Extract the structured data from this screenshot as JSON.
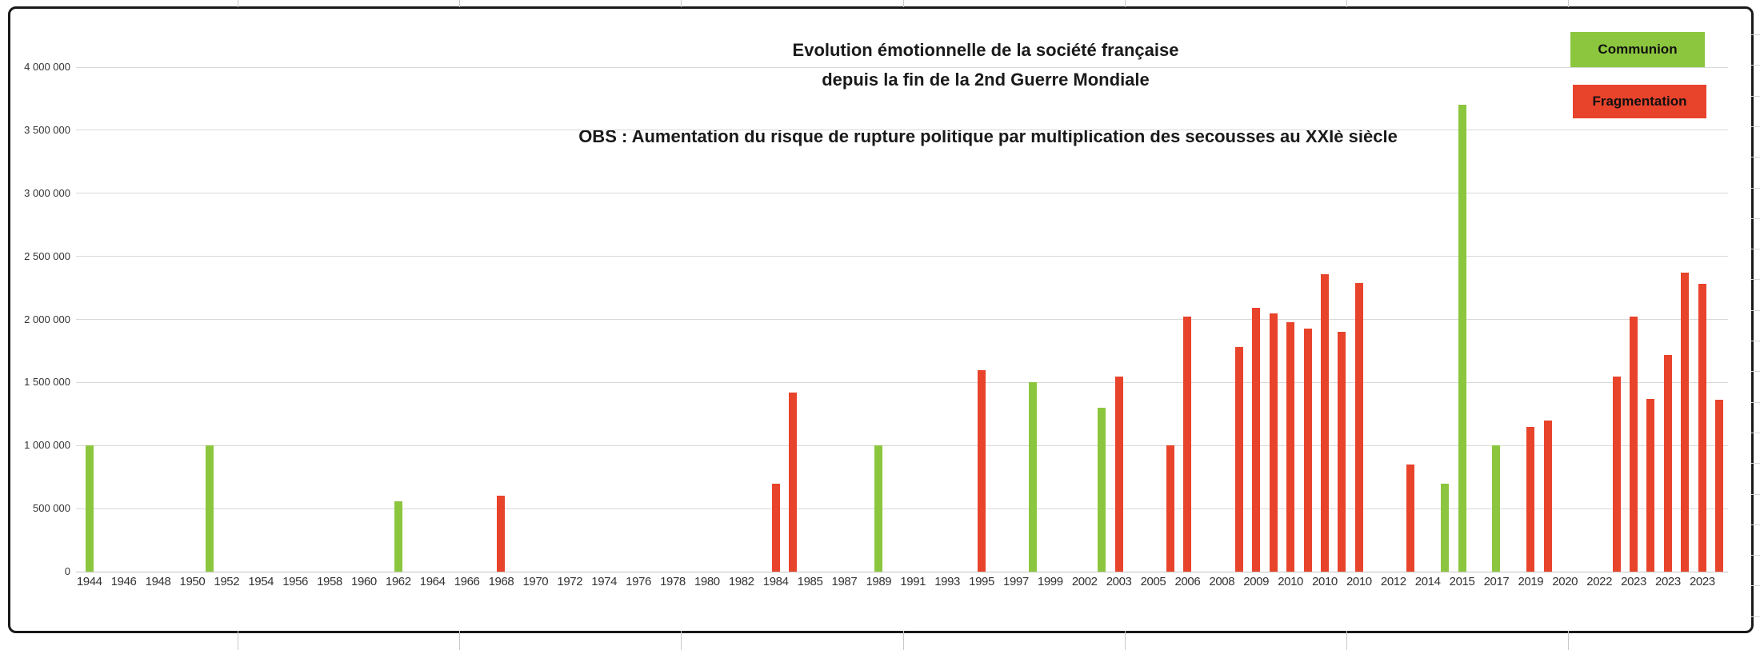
{
  "chart_data": {
    "type": "bar",
    "title_lines": [
      "Evolution émotionnelle de la société française",
      "depuis la fin de la 2nd Guerre Mondiale"
    ],
    "subtitle": "OBS : Aumentation du risque de rupture politique par multiplication des secousses au XXIè siècle",
    "legend": [
      {
        "label": "Communion",
        "color": "#8CC63E"
      },
      {
        "label": "Fragmentation",
        "color": "#E8432B"
      }
    ],
    "legend_position": "top-right",
    "grid": true,
    "colors": {
      "communion": "#8CC63E",
      "fragmentation": "#E8432B",
      "gridline": "#D9D9D9",
      "text": "#333333"
    },
    "y_axis": {
      "min": 0,
      "max": 4000000,
      "tick_interval": 500000,
      "tick_labels": [
        "0",
        "500 000",
        "1 000 000",
        "1 500 000",
        "2 000 000",
        "2 500 000",
        "3 000 000",
        "3 500 000",
        "4 000 000"
      ]
    },
    "x_axis": {
      "labels": [
        "1944",
        "1946",
        "1948",
        "1950",
        "1952",
        "1954",
        "1956",
        "1958",
        "1960",
        "1962",
        "1964",
        "1966",
        "1968",
        "1970",
        "1972",
        "1974",
        "1976",
        "1978",
        "1980",
        "1982",
        "1984",
        "1985",
        "1987",
        "1989",
        "1991",
        "1993",
        "1995",
        "1997",
        "1999",
        "2002",
        "2003",
        "2005",
        "2006",
        "2008",
        "2009",
        "2010",
        "2010",
        "2010",
        "2012",
        "2014",
        "2015",
        "2017",
        "2019",
        "2020",
        "2022",
        "2023",
        "2023",
        "2023"
      ],
      "slots": 96,
      "label_slot_interval": 2
    },
    "bars": [
      {
        "slot": 0,
        "year": "1944",
        "series": "Communion",
        "value": 1000000
      },
      {
        "slot": 7,
        "year": "1950",
        "series": "Communion",
        "value": 1000000
      },
      {
        "slot": 18,
        "year": "1962",
        "series": "Communion",
        "value": 560000
      },
      {
        "slot": 24,
        "year": "1968",
        "series": "Fragmentation",
        "value": 600000
      },
      {
        "slot": 40,
        "year": "1984",
        "series": "Fragmentation",
        "value": 700000
      },
      {
        "slot": 41,
        "year": "1985",
        "series": "Fragmentation",
        "value": 1420000
      },
      {
        "slot": 46,
        "year": "1989",
        "series": "Communion",
        "value": 1000000
      },
      {
        "slot": 52,
        "year": "1995",
        "series": "Fragmentation",
        "value": 1600000
      },
      {
        "slot": 55,
        "year": "1997",
        "series": "Communion",
        "value": 1500000
      },
      {
        "slot": 59,
        "year": "2002",
        "series": "Communion",
        "value": 1300000
      },
      {
        "slot": 60,
        "year": "2003",
        "series": "Fragmentation",
        "value": 1550000
      },
      {
        "slot": 63,
        "year": "2005",
        "series": "Fragmentation",
        "value": 1000000
      },
      {
        "slot": 64,
        "year": "2006",
        "series": "Fragmentation",
        "value": 2020000
      },
      {
        "slot": 67,
        "year": "2008",
        "series": "Fragmentation",
        "value": 1780000
      },
      {
        "slot": 68,
        "year": "2009",
        "series": "Fragmentation",
        "value": 2090000
      },
      {
        "slot": 69,
        "year": "2009",
        "series": "Fragmentation",
        "value": 2050000
      },
      {
        "slot": 70,
        "year": "2010",
        "series": "Fragmentation",
        "value": 1980000
      },
      {
        "slot": 71,
        "year": "2010",
        "series": "Fragmentation",
        "value": 1930000
      },
      {
        "slot": 72,
        "year": "2010",
        "series": "Fragmentation",
        "value": 2360000
      },
      {
        "slot": 73,
        "year": "2010",
        "series": "Fragmentation",
        "value": 1900000
      },
      {
        "slot": 74,
        "year": "2010",
        "series": "Fragmentation",
        "value": 2290000
      },
      {
        "slot": 77,
        "year": "2012",
        "series": "Fragmentation",
        "value": 850000
      },
      {
        "slot": 79,
        "year": "2014",
        "series": "Communion",
        "value": 700000
      },
      {
        "slot": 80,
        "year": "2015",
        "series": "Communion",
        "value": 3700000
      },
      {
        "slot": 82,
        "year": "2017",
        "series": "Communion",
        "value": 1000000
      },
      {
        "slot": 84,
        "year": "2019",
        "series": "Fragmentation",
        "value": 1150000
      },
      {
        "slot": 85,
        "year": "2019",
        "series": "Fragmentation",
        "value": 1200000
      },
      {
        "slot": 89,
        "year": "2022",
        "series": "Fragmentation",
        "value": 1550000
      },
      {
        "slot": 90,
        "year": "2023",
        "series": "Fragmentation",
        "value": 2020000
      },
      {
        "slot": 91,
        "year": "2023",
        "series": "Fragmentation",
        "value": 1370000
      },
      {
        "slot": 92,
        "year": "2023",
        "series": "Fragmentation",
        "value": 1720000
      },
      {
        "slot": 93,
        "year": "2023",
        "series": "Fragmentation",
        "value": 2370000
      },
      {
        "slot": 94,
        "year": "2023",
        "series": "Fragmentation",
        "value": 2280000
      },
      {
        "slot": 95,
        "year": "2023",
        "series": "Fragmentation",
        "value": 1360000
      }
    ]
  }
}
